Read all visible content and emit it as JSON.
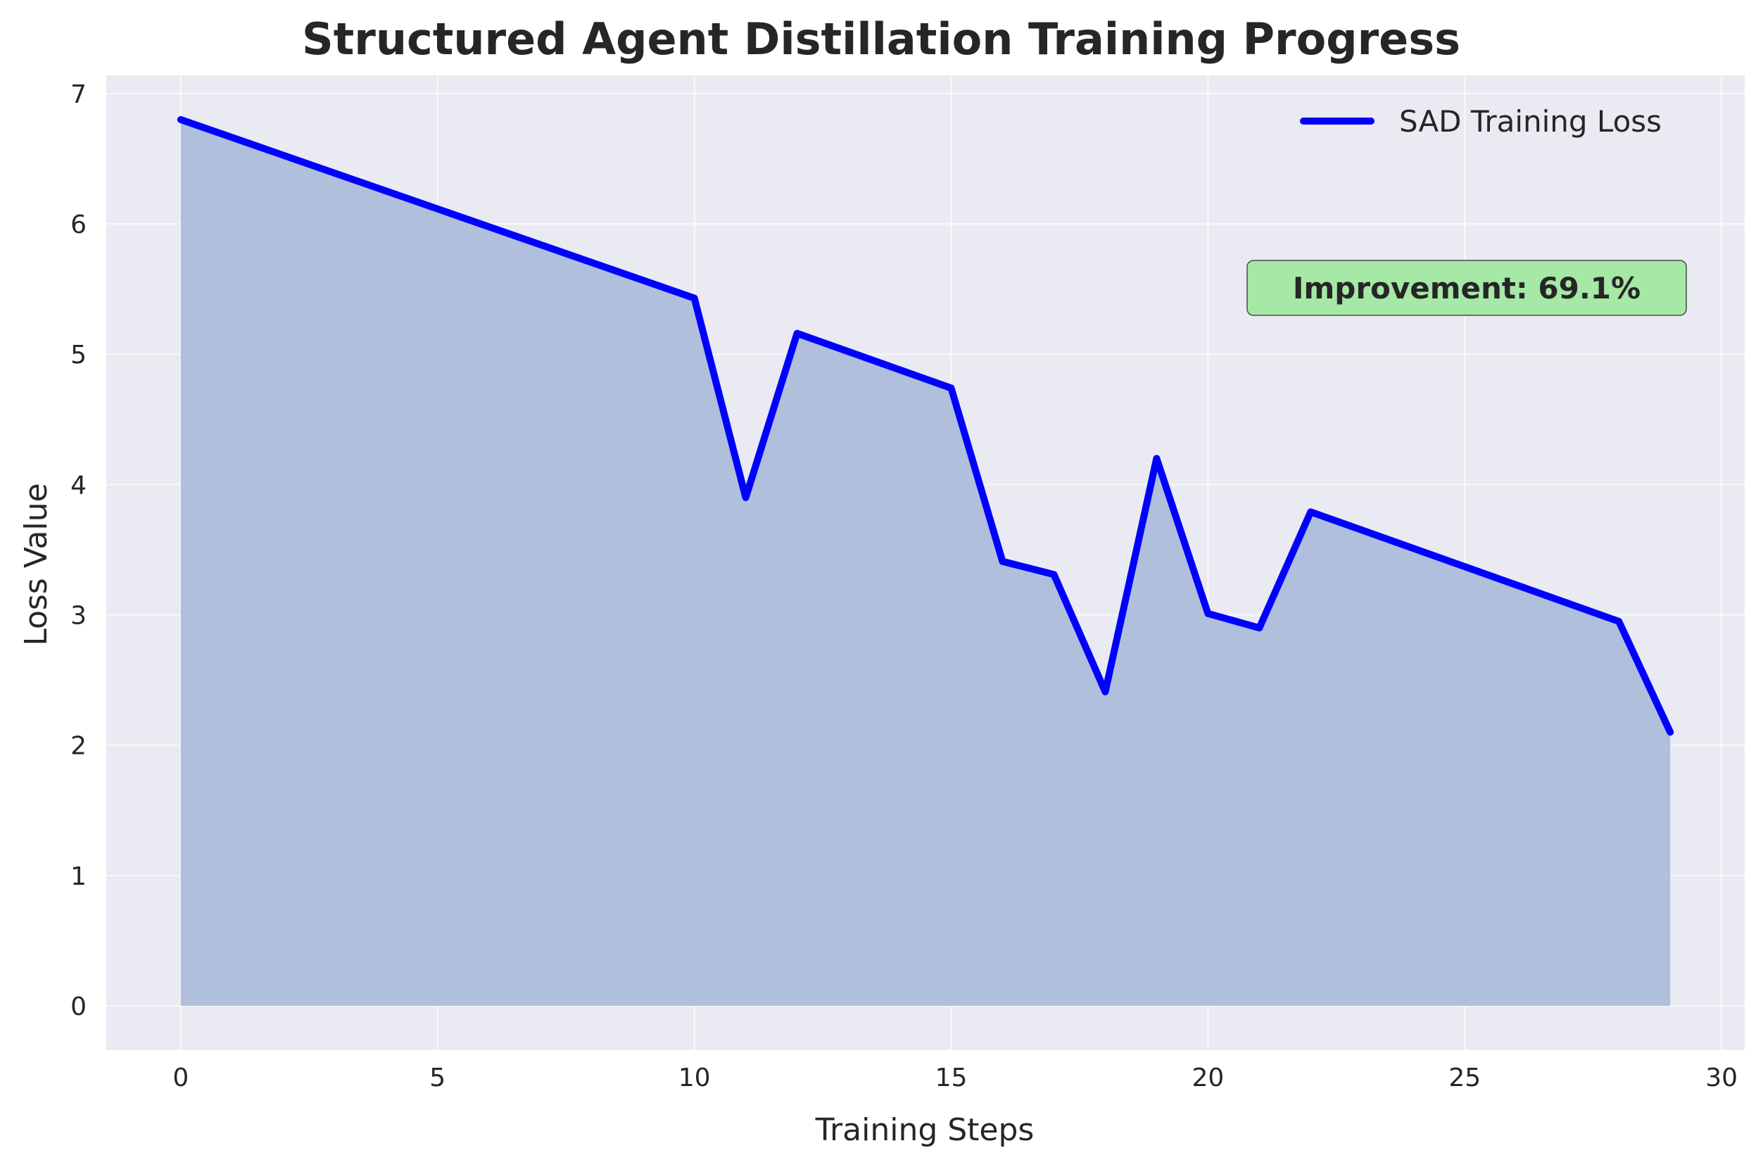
{
  "chart_data": {
    "type": "area",
    "title": "Structured Agent Distillation Training Progress",
    "xlabel": "Training Steps",
    "ylabel": "Loss Value",
    "xlim": [
      -1.45,
      30.45
    ],
    "ylim": [
      -0.34,
      7.14
    ],
    "xticks": [
      0,
      5,
      10,
      15,
      20,
      25,
      30
    ],
    "yticks": [
      0,
      1,
      2,
      3,
      4,
      5,
      6,
      7
    ],
    "grid": true,
    "legend_position": "top-right",
    "series": [
      {
        "name": "SAD Training Loss",
        "color": "#0000ff",
        "fill_color": "#b0bfdc",
        "x": [
          0,
          10,
          11,
          12,
          15,
          16,
          17,
          18,
          19,
          20,
          21,
          22,
          28,
          29
        ],
        "values": [
          6.8,
          5.43,
          3.9,
          5.16,
          4.74,
          3.41,
          3.31,
          2.41,
          4.2,
          3.01,
          2.9,
          3.79,
          2.95,
          2.1
        ]
      }
    ],
    "annotation": {
      "text": "Improvement: 69.1%",
      "background": "#a6e8a6"
    },
    "plot_background": "#eaeaf2",
    "grid_color": "#ffffff"
  }
}
